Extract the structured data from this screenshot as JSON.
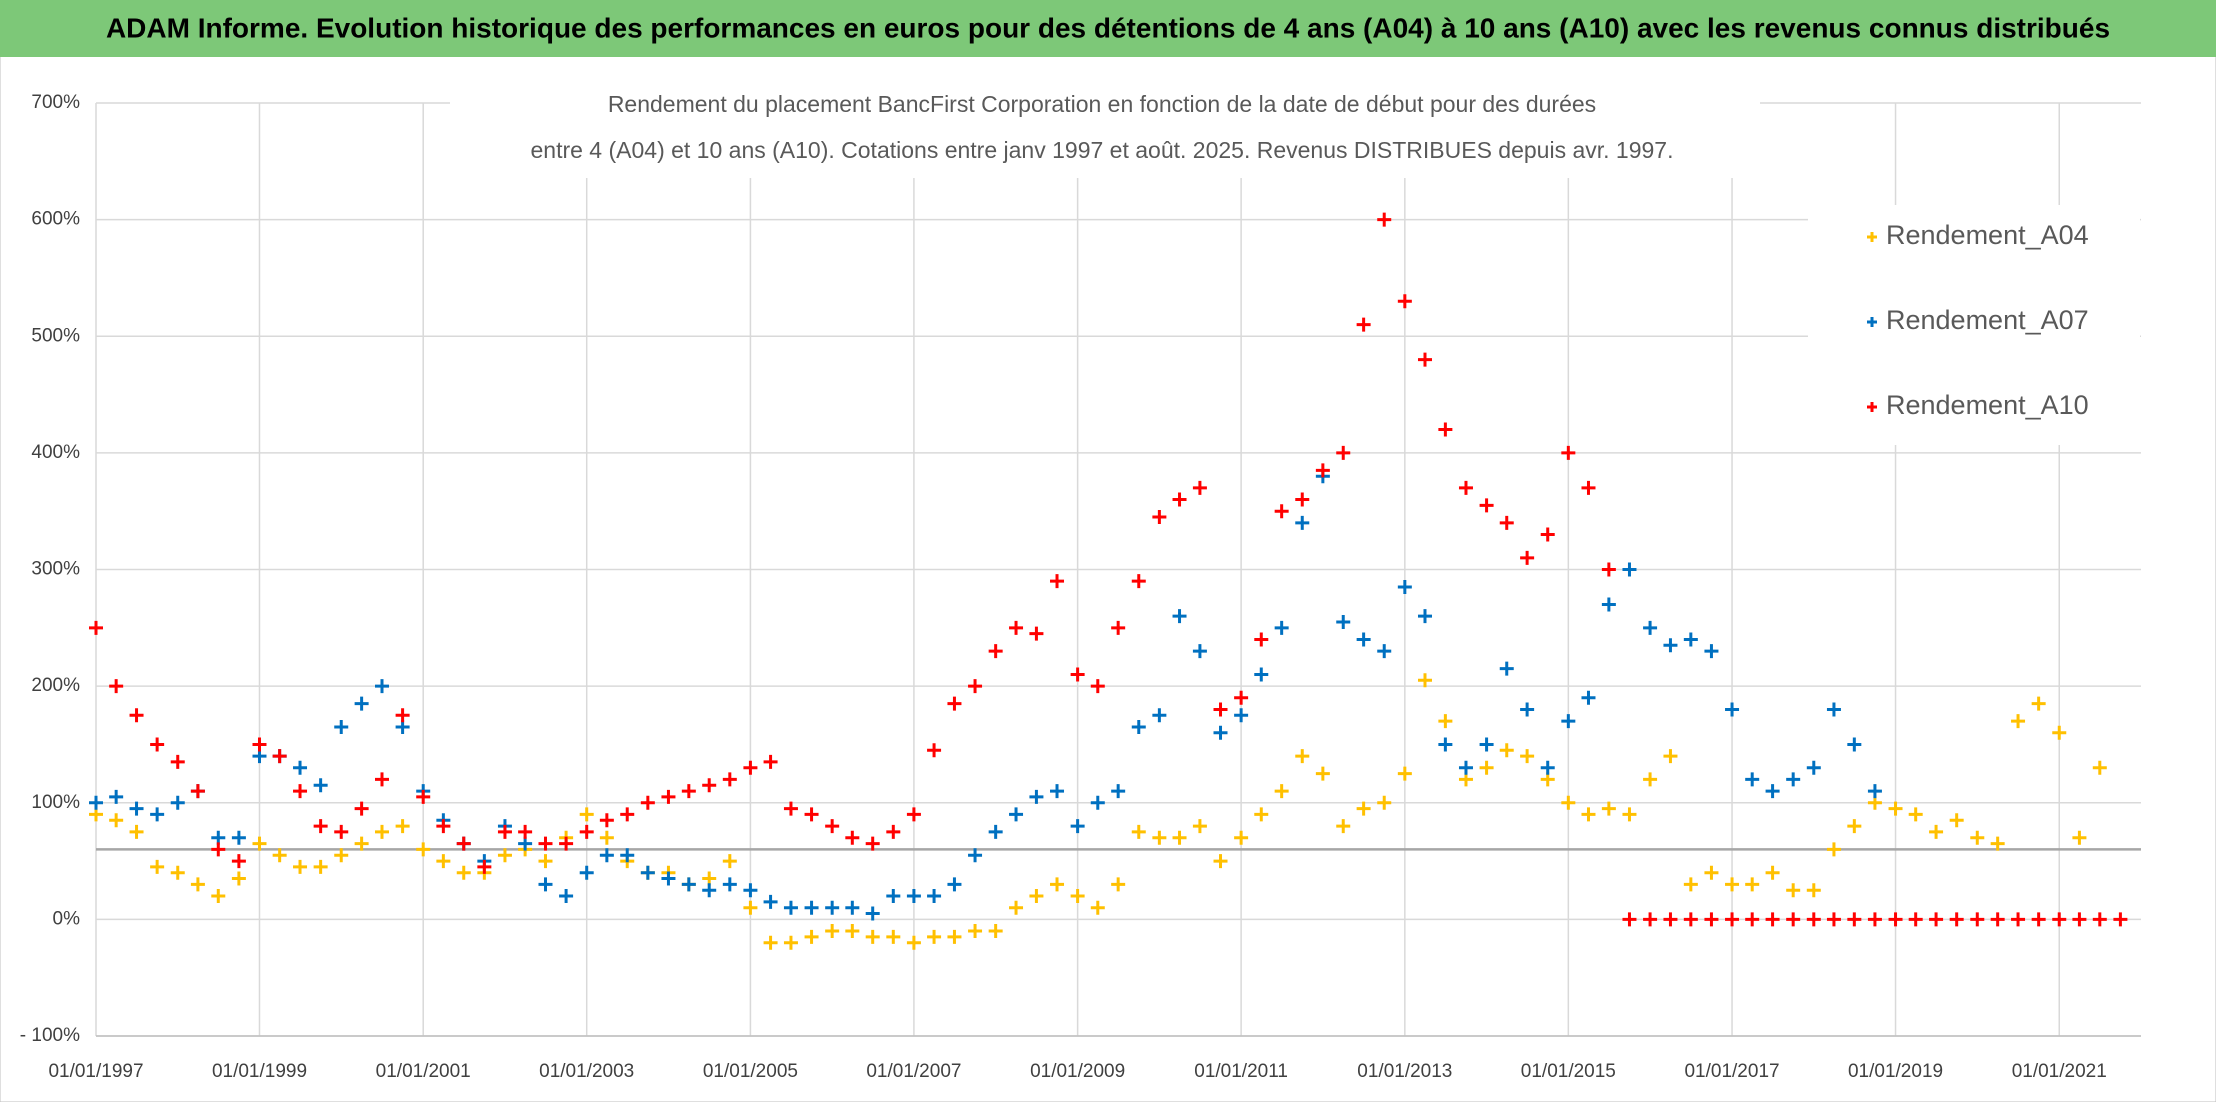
{
  "chart_data": {
    "type": "scatter",
    "title": "ADAM Informe. Evolution historique des performances en euros pour des détentions de 4 ans (A04) à 10 ans (A10) avec les revenus connus distribués",
    "subtitle": [
      "Rendement du placement BancFirst Corporation en fonction de la date de début pour des durées",
      "entre 4 (A04) et 10 ans (A10). Cotations entre janv 1997 et août. 2025. Revenus DISTRIBUES depuis avr. 1997."
    ],
    "x": [
      "01/01/1997",
      "01/04/1997",
      "01/07/1997",
      "01/10/1997",
      "01/01/1998",
      "01/04/1998",
      "01/07/1998",
      "01/10/1998",
      "01/01/1999",
      "01/04/1999",
      "01/07/1999",
      "01/10/1999",
      "01/01/2000",
      "01/04/2000",
      "01/07/2000",
      "01/10/2000",
      "01/01/2001",
      "01/04/2001",
      "01/07/2001",
      "01/10/2001",
      "01/01/2002",
      "01/04/2002",
      "01/07/2002",
      "01/10/2002",
      "01/01/2003",
      "01/04/2003",
      "01/07/2003",
      "01/10/2003",
      "01/01/2004",
      "01/04/2004",
      "01/07/2004",
      "01/10/2004",
      "01/01/2005",
      "01/04/2005",
      "01/07/2005",
      "01/10/2005",
      "01/01/2006",
      "01/04/2006",
      "01/07/2006",
      "01/10/2006",
      "01/01/2007",
      "01/04/2007",
      "01/07/2007",
      "01/10/2007",
      "01/01/2008",
      "01/04/2008",
      "01/07/2008",
      "01/10/2008",
      "01/01/2009",
      "01/04/2009",
      "01/07/2009",
      "01/10/2009",
      "01/01/2010",
      "01/04/2010",
      "01/07/2010",
      "01/10/2010",
      "01/01/2011",
      "01/04/2011",
      "01/07/2011",
      "01/10/2011",
      "01/01/2012",
      "01/04/2012",
      "01/07/2012",
      "01/10/2012",
      "01/01/2013",
      "01/04/2013",
      "01/07/2013",
      "01/10/2013",
      "01/01/2014",
      "01/04/2014",
      "01/07/2014",
      "01/10/2014",
      "01/01/2015",
      "01/04/2015",
      "01/07/2015",
      "01/10/2015",
      "01/01/2016",
      "01/04/2016",
      "01/07/2016",
      "01/10/2016",
      "01/01/2017",
      "01/04/2017",
      "01/07/2017",
      "01/10/2017",
      "01/01/2018",
      "01/04/2018",
      "01/07/2018",
      "01/10/2018",
      "01/01/2019",
      "01/04/2019",
      "01/07/2019",
      "01/10/2019",
      "01/01/2020",
      "01/04/2020",
      "01/07/2020",
      "01/10/2020",
      "01/01/2021",
      "01/04/2021",
      "01/07/2021",
      "01/10/2021"
    ],
    "series": [
      {
        "name": "Rendement_A04",
        "color": "#ffc000",
        "values": [
          90,
          85,
          75,
          45,
          40,
          30,
          20,
          35,
          65,
          55,
          45,
          45,
          55,
          65,
          75,
          80,
          60,
          50,
          40,
          40,
          55,
          60,
          50,
          70,
          90,
          70,
          50,
          40,
          40,
          30,
          35,
          50,
          10,
          -20,
          -20,
          -15,
          -10,
          -10,
          -15,
          -15,
          -20,
          -15,
          -15,
          -10,
          -10,
          10,
          20,
          30,
          20,
          10,
          30,
          75,
          70,
          70,
          80,
          50,
          70,
          90,
          110,
          140,
          125,
          80,
          95,
          100,
          125,
          205,
          170,
          120,
          130,
          145,
          140,
          120,
          100,
          90,
          95,
          90,
          120,
          140,
          30,
          40,
          30,
          30,
          40,
          25,
          25,
          60,
          80,
          100,
          95,
          90,
          75,
          85,
          70,
          65,
          170,
          185,
          160,
          70,
          130,
          null
        ]
      },
      {
        "name": "Rendement_A07",
        "color": "#0070c0",
        "values": [
          100,
          105,
          95,
          90,
          100,
          110,
          70,
          70,
          140,
          140,
          130,
          115,
          165,
          185,
          200,
          165,
          110,
          85,
          65,
          50,
          80,
          65,
          30,
          20,
          40,
          55,
          55,
          40,
          35,
          30,
          25,
          30,
          25,
          15,
          10,
          10,
          10,
          10,
          5,
          20,
          20,
          20,
          30,
          55,
          75,
          90,
          105,
          110,
          80,
          100,
          110,
          165,
          175,
          260,
          230,
          160,
          175,
          210,
          250,
          340,
          380,
          255,
          240,
          230,
          285,
          260,
          150,
          130,
          150,
          215,
          180,
          130,
          170,
          190,
          270,
          300,
          250,
          235,
          240,
          230,
          180,
          120,
          110,
          120,
          130,
          180,
          150,
          110,
          null,
          null,
          null,
          null,
          null,
          null,
          null,
          null,
          null,
          null,
          null,
          null
        ]
      },
      {
        "name": "Rendement_A10",
        "color": "#ff0000",
        "values": [
          250,
          200,
          175,
          150,
          135,
          110,
          60,
          50,
          150,
          140,
          110,
          80,
          75,
          95,
          120,
          175,
          105,
          80,
          65,
          45,
          75,
          75,
          65,
          65,
          75,
          85,
          90,
          100,
          105,
          110,
          115,
          120,
          130,
          135,
          95,
          90,
          80,
          70,
          65,
          75,
          90,
          145,
          185,
          200,
          230,
          250,
          245,
          290,
          210,
          200,
          250,
          290,
          345,
          360,
          370,
          180,
          190,
          240,
          350,
          360,
          385,
          400,
          510,
          600,
          530,
          480,
          420,
          370,
          355,
          340,
          310,
          330,
          400,
          370,
          300,
          0,
          0,
          0,
          0,
          0,
          0,
          0,
          0,
          0,
          0,
          0,
          0,
          0,
          0,
          0,
          0,
          0,
          0,
          0,
          0,
          0,
          0,
          0,
          0,
          0
        ]
      }
    ],
    "xlim": [
      "01/01/1997",
      "01/01/2022"
    ],
    "xticks": [
      "01/01/1997",
      "01/01/1999",
      "01/01/2001",
      "01/01/2003",
      "01/01/2005",
      "01/01/2007",
      "01/01/2009",
      "01/01/2011",
      "01/01/2013",
      "01/01/2015",
      "01/01/2017",
      "01/01/2019",
      "01/01/2021"
    ],
    "ylim": [
      -100,
      700
    ],
    "yticks": [
      {
        "value": -100,
        "label": "- 100%"
      },
      {
        "value": 0,
        "label": "0%"
      },
      {
        "value": 100,
        "label": "100%"
      },
      {
        "value": 200,
        "label": "200%"
      },
      {
        "value": 300,
        "label": "300%"
      },
      {
        "value": 400,
        "label": "400%"
      },
      {
        "value": 500,
        "label": "500%"
      },
      {
        "value": 600,
        "label": "600%"
      },
      {
        "value": 700,
        "label": "700%"
      }
    ],
    "reference_line": 60,
    "grid": true,
    "legend": "right"
  }
}
